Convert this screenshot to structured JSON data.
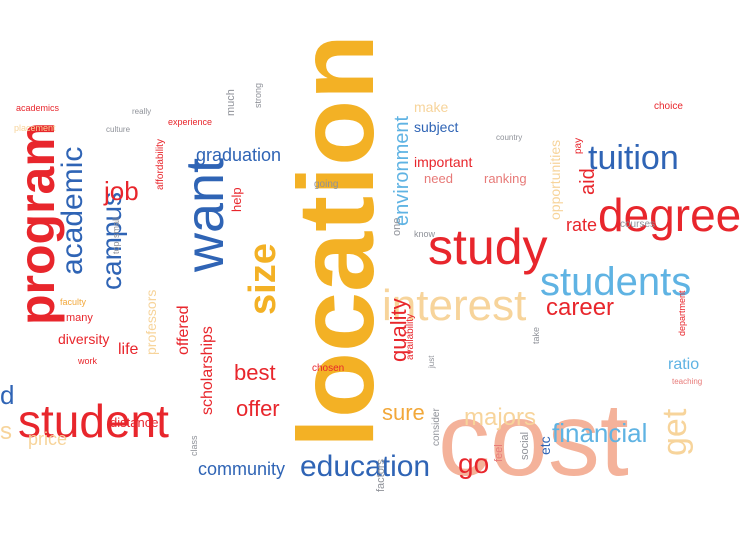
{
  "palette": {
    "red": "#e8262c",
    "orange": "#f2a83a",
    "peach": "#f4b29a",
    "blue": "#2f64b5",
    "lightblue": "#5fb3e3",
    "gray": "#8f9299",
    "pink": "#e77a78",
    "gold": "#f3b125",
    "pale": "#f7d49b"
  },
  "words": [
    {
      "text": "location"
    },
    {
      "text": "cost"
    },
    {
      "text": "degree"
    },
    {
      "text": "students"
    },
    {
      "text": "tuition"
    },
    {
      "text": "study"
    },
    {
      "text": "interest"
    },
    {
      "text": "program"
    },
    {
      "text": "student"
    },
    {
      "text": "want"
    },
    {
      "text": "size"
    },
    {
      "text": "academic"
    },
    {
      "text": "campus"
    },
    {
      "text": "education"
    },
    {
      "text": "financial"
    },
    {
      "text": "job"
    },
    {
      "text": "get"
    },
    {
      "text": "career"
    },
    {
      "text": "majors"
    },
    {
      "text": "go"
    },
    {
      "text": "quality"
    },
    {
      "text": "best"
    },
    {
      "text": "offer"
    },
    {
      "text": "sure"
    },
    {
      "text": "environment"
    },
    {
      "text": "aid"
    },
    {
      "text": "rate"
    },
    {
      "text": "community"
    },
    {
      "text": "graduation"
    },
    {
      "text": "scholarships"
    },
    {
      "text": "professors"
    },
    {
      "text": "offered"
    },
    {
      "text": "ratio"
    },
    {
      "text": "opportunities"
    },
    {
      "text": "important"
    },
    {
      "text": "subject"
    },
    {
      "text": "need"
    },
    {
      "text": "ranking"
    },
    {
      "text": "make"
    },
    {
      "text": "price"
    },
    {
      "text": "distance"
    },
    {
      "text": "diversity"
    },
    {
      "text": "many"
    },
    {
      "text": "life"
    },
    {
      "text": "faculty"
    },
    {
      "text": "work"
    },
    {
      "text": "courses"
    },
    {
      "text": "etc"
    },
    {
      "text": "chosen"
    },
    {
      "text": "help"
    },
    {
      "text": "affordability"
    },
    {
      "text": "choice"
    },
    {
      "text": "experience"
    },
    {
      "text": "academics"
    },
    {
      "text": "placement"
    },
    {
      "text": "culture"
    },
    {
      "text": "much"
    },
    {
      "text": "going"
    },
    {
      "text": "availability"
    },
    {
      "text": "department"
    },
    {
      "text": "teaching"
    },
    {
      "text": "strong"
    },
    {
      "text": "take"
    },
    {
      "text": "social"
    },
    {
      "text": "feel"
    },
    {
      "text": "factors"
    },
    {
      "text": "consider"
    },
    {
      "text": "just"
    },
    {
      "text": "country"
    },
    {
      "text": "pay"
    },
    {
      "text": "class"
    },
    {
      "text": "really"
    },
    {
      "text": "top"
    },
    {
      "text": "small"
    },
    {
      "text": "d"
    },
    {
      "text": "s"
    },
    {
      "text": "one"
    },
    {
      "text": "know"
    }
  ]
}
